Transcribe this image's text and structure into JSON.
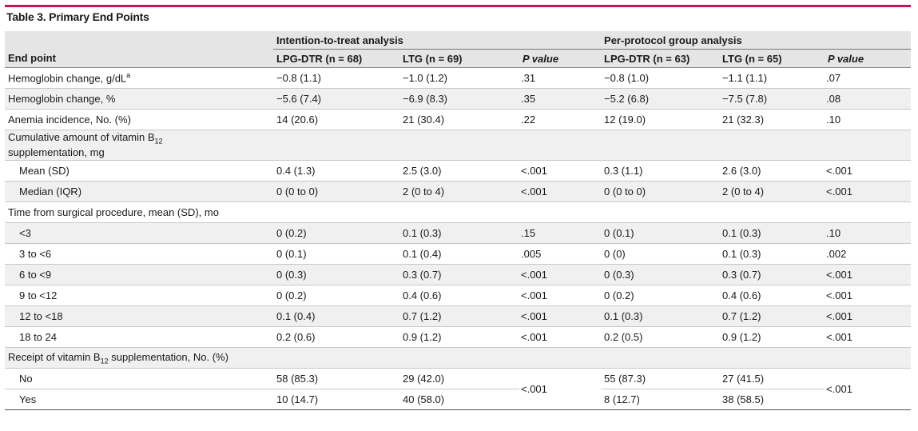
{
  "table_title": "Table 3. Primary End Points",
  "groups": {
    "itt": "Intention-to-treat analysis",
    "pp": "Per-protocol group analysis"
  },
  "columns": {
    "end_point": "End point",
    "itt_lpg": "LPG-DTR (n = 68)",
    "itt_ltg": "LTG (n = 69)",
    "itt_p": "P value",
    "pp_lpg": "LPG-DTR (n = 63)",
    "pp_ltg": "LTG (n = 65)",
    "pp_p": "P value"
  },
  "rows": {
    "hb_gdl": {
      "label": "Hemoglobin change, g/dL",
      "sup": "a",
      "c": [
        "−0.8 (1.1)",
        "−1.0 (1.2)",
        ".31",
        "−0.8 (1.0)",
        "−1.1 (1.1)",
        ".07"
      ]
    },
    "hb_pct": {
      "label": "Hemoglobin change, %",
      "c": [
        "−5.6 (7.4)",
        "−6.9 (8.3)",
        ".35",
        "−5.2 (6.8)",
        "−7.5 (7.8)",
        ".08"
      ]
    },
    "anemia": {
      "label": "Anemia incidence, No. (%)",
      "c": [
        "14 (20.6)",
        "21 (30.4)",
        ".22",
        "12 (19.0)",
        "21 (32.3)",
        ".10"
      ]
    },
    "cumulative": {
      "label_a": "Cumulative amount of vitamin B",
      "sub": "12",
      "label_b": "supplementation, mg"
    },
    "mean": {
      "label": "Mean (SD)",
      "c": [
        "0.4 (1.3)",
        "2.5 (3.0)",
        "<.001",
        "0.3 (1.1)",
        "2.6 (3.0)",
        "<.001"
      ]
    },
    "median": {
      "label": "Median (IQR)",
      "c": [
        "0 (0 to 0)",
        "2 (0 to 4)",
        "<.001",
        "0 (0 to 0)",
        "2 (0 to 4)",
        "<.001"
      ]
    },
    "time": {
      "label": "Time from surgical procedure, mean (SD), mo"
    },
    "t1": {
      "label": "<3",
      "c": [
        "0 (0.2)",
        "0.1 (0.3)",
        ".15",
        "0 (0.1)",
        "0.1 (0.3)",
        ".10"
      ]
    },
    "t2": {
      "label": "3 to <6",
      "c": [
        "0 (0.1)",
        "0.1 (0.4)",
        ".005",
        "0 (0)",
        "0.1 (0.3)",
        ".002"
      ]
    },
    "t3": {
      "label": "6 to <9",
      "c": [
        "0 (0.3)",
        "0.3 (0.7)",
        "<.001",
        "0 (0.3)",
        "0.3 (0.7)",
        "<.001"
      ]
    },
    "t4": {
      "label": "9 to <12",
      "c": [
        "0 (0.2)",
        "0.4 (0.6)",
        "<.001",
        "0 (0.2)",
        "0.4 (0.6)",
        "<.001"
      ]
    },
    "t5": {
      "label": "12 to <18",
      "c": [
        "0.1 (0.4)",
        "0.7 (1.2)",
        "<.001",
        "0.1 (0.3)",
        "0.7 (1.2)",
        "<.001"
      ]
    },
    "t6": {
      "label": "18 to 24",
      "c": [
        "0.2 (0.6)",
        "0.9 (1.2)",
        "<.001",
        "0.2 (0.5)",
        "0.9 (1.2)",
        "<.001"
      ]
    },
    "receipt": {
      "label_a": "Receipt of vitamin B",
      "sub": "12",
      "label_b": " supplementation, No. (%)"
    },
    "no": {
      "label": "No",
      "c": [
        "58 (85.3)",
        "29 (42.0)",
        "55 (87.3)",
        "27 (41.5)"
      ]
    },
    "yes": {
      "label": "Yes",
      "c": [
        "10 (14.7)",
        "40 (58.0)",
        "8 (12.7)",
        "38 (58.5)"
      ]
    },
    "receipt_p": {
      "itt": "<.001",
      "pp": "<.001"
    }
  }
}
